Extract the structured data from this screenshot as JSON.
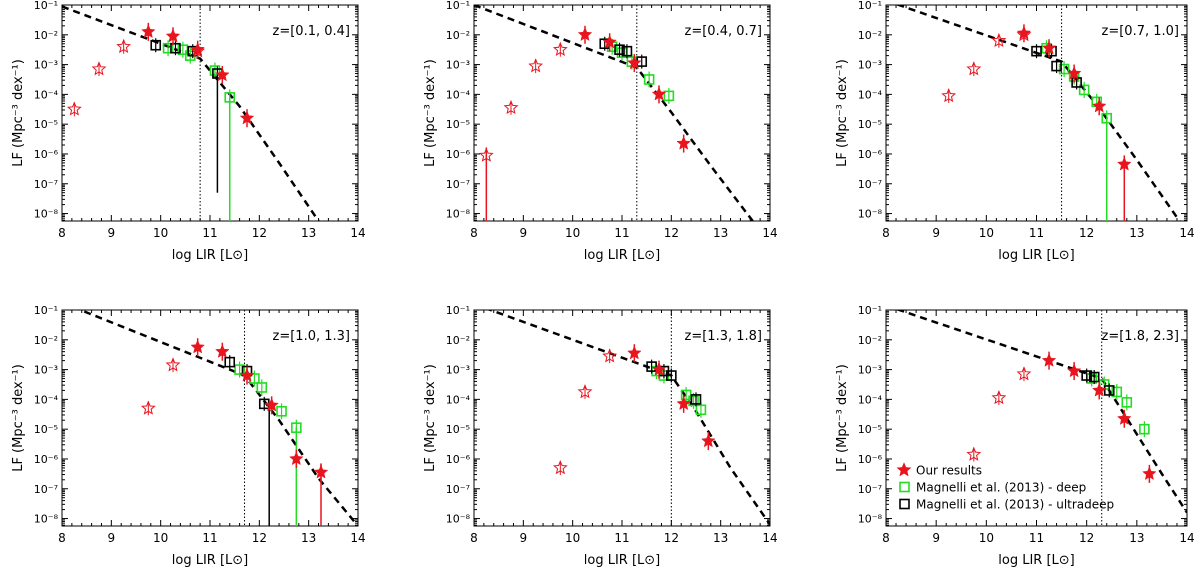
{
  "figure": {
    "xlabel": "log LIR [L⊙]",
    "ylabel": "LF (Mpc⁻³ dex⁻¹)",
    "xlim": [
      8,
      14
    ],
    "ylim_log10": [
      -8.25,
      -1
    ],
    "xticks": [
      "8",
      "9",
      "10",
      "11",
      "12",
      "13",
      "14"
    ],
    "yticks": [
      "10⁻¹",
      "10⁻²",
      "10⁻³",
      "10⁻⁴",
      "10⁻⁵",
      "10⁻⁶",
      "10⁻⁷",
      "10⁻⁸"
    ],
    "colors": {
      "ours": "#e8141e",
      "deep": "#22dd22",
      "ultradeep": "#000000",
      "fit": "#000000"
    },
    "legend": {
      "placement": "lower-left of last panel",
      "entries": [
        {
          "label": "Our results",
          "marker": "filled-star",
          "color": "#e8141e"
        },
        {
          "label": "Magnelli et al. (2013) - deep",
          "marker": "open-square",
          "color": "#22dd22"
        },
        {
          "label": "Magnelli et al. (2013) - ultradeep",
          "marker": "open-square",
          "color": "#000000"
        }
      ]
    }
  },
  "chart_data": [
    {
      "type": "scatter",
      "title": "z=[0.1, 0.4]",
      "y_scale": "log",
      "vline": 10.8,
      "fit": [
        [
          8,
          -1.05
        ],
        [
          10.8,
          -2.8
        ],
        [
          11.6,
          -4.4
        ],
        [
          12.4,
          -6.3
        ],
        [
          13.2,
          -8.25
        ]
      ],
      "series": [
        {
          "name": "Our results",
          "filled": [
            [
              9.75,
              -1.9
            ],
            [
              10.25,
              -2.05
            ],
            [
              10.75,
              -2.5
            ],
            [
              11.25,
              -3.35
            ],
            [
              11.75,
              -4.8
            ]
          ],
          "open": [
            [
              8.25,
              -4.5
            ],
            [
              8.75,
              -3.15
            ],
            [
              9.25,
              -2.4
            ],
            [
              10.75,
              -2.55
            ]
          ]
        },
        {
          "name": "Magnelli et al. (2013) - deep",
          "points": [
            [
              10.15,
              -2.45
            ],
            [
              10.45,
              -2.5
            ],
            [
              10.6,
              -2.7
            ],
            [
              11.1,
              -3.2
            ],
            [
              11.4,
              -4.1
            ]
          ],
          "err_to_bottom": [
            11.4
          ]
        },
        {
          "name": "Magnelli et al. (2013) - ultradeep",
          "points": [
            [
              9.9,
              -2.35
            ],
            [
              10.3,
              -2.45
            ],
            [
              10.65,
              -2.55
            ],
            [
              11.15,
              -3.3
            ]
          ],
          "err_low": [
            [
              11.15,
              -7.3
            ]
          ]
        }
      ]
    },
    {
      "type": "scatter",
      "title": "z=[0.4, 0.7]",
      "y_scale": "log",
      "vline": 11.3,
      "fit": [
        [
          8,
          -1.0
        ],
        [
          11.3,
          -3.1
        ],
        [
          12.0,
          -4.6
        ],
        [
          12.8,
          -6.4
        ],
        [
          13.65,
          -8.25
        ]
      ],
      "series": [
        {
          "name": "Our results",
          "filled": [
            [
              10.25,
              -2.0
            ],
            [
              10.75,
              -2.25
            ],
            [
              11.25,
              -2.95
            ],
            [
              11.75,
              -4.0
            ],
            [
              12.25,
              -5.65
            ]
          ],
          "open": [
            [
              8.25,
              -6.05
            ],
            [
              8.75,
              -4.45
            ],
            [
              9.25,
              -3.05
            ],
            [
              9.75,
              -2.5
            ]
          ],
          "err_to_bottom": [
            8.25
          ]
        },
        {
          "name": "Magnelli et al. (2013) - deep",
          "points": [
            [
              10.8,
              -2.4
            ],
            [
              11.0,
              -2.6
            ],
            [
              11.2,
              -2.9
            ],
            [
              11.55,
              -3.5
            ],
            [
              11.95,
              -4.05
            ]
          ]
        },
        {
          "name": "Magnelli et al. (2013) - ultradeep",
          "points": [
            [
              10.65,
              -2.3
            ],
            [
              10.95,
              -2.5
            ],
            [
              11.1,
              -2.55
            ],
            [
              11.4,
              -2.9
            ]
          ]
        }
      ]
    },
    {
      "type": "scatter",
      "title": "z=[0.7, 1.0]",
      "y_scale": "log",
      "vline": 11.5,
      "fit": [
        [
          8,
          -0.85
        ],
        [
          11.5,
          -2.9
        ],
        [
          12.2,
          -4.35
        ],
        [
          13.0,
          -6.2
        ],
        [
          13.85,
          -8.25
        ]
      ],
      "series": [
        {
          "name": "Our results",
          "filled": [
            [
              10.75,
              -1.95
            ],
            [
              11.25,
              -2.45
            ],
            [
              11.75,
              -3.3
            ],
            [
              12.25,
              -4.4
            ],
            [
              12.75,
              -6.35
            ]
          ],
          "open": [
            [
              9.25,
              -4.05
            ],
            [
              9.75,
              -3.15
            ],
            [
              10.25,
              -2.2
            ],
            [
              10.75,
              -2.0
            ]
          ],
          "err_to_bottom": [
            12.75
          ]
        },
        {
          "name": "Magnelli et al. (2013) - deep",
          "points": [
            [
              11.2,
              -2.45
            ],
            [
              11.55,
              -3.15
            ],
            [
              11.75,
              -3.4
            ],
            [
              11.95,
              -3.85
            ],
            [
              12.2,
              -4.25
            ],
            [
              12.4,
              -4.8
            ]
          ],
          "err_to_bottom": [
            12.4
          ]
        },
        {
          "name": "Magnelli et al. (2013) - ultradeep",
          "points": [
            [
              11.0,
              -2.55
            ],
            [
              11.3,
              -2.55
            ],
            [
              11.4,
              -3.05
            ],
            [
              11.8,
              -3.6
            ]
          ]
        }
      ]
    },
    {
      "type": "scatter",
      "title": "z=[1.0, 1.3]",
      "y_scale": "log",
      "vline": 11.7,
      "fit": [
        [
          8,
          -0.75
        ],
        [
          11.7,
          -3.2
        ],
        [
          12.4,
          -4.7
        ],
        [
          13.2,
          -6.65
        ],
        [
          14.0,
          -8.25
        ]
      ],
      "series": [
        {
          "name": "Our results",
          "filled": [
            [
              10.75,
              -2.25
            ],
            [
              11.25,
              -2.4
            ],
            [
              11.75,
              -3.2
            ],
            [
              12.25,
              -4.2
            ],
            [
              12.75,
              -6.0
            ],
            [
              13.25,
              -6.45
            ]
          ],
          "open": [
            [
              9.75,
              -4.3
            ],
            [
              10.25,
              -2.85
            ]
          ],
          "err_to_bottom": [
            13.25
          ]
        },
        {
          "name": "Magnelli et al. (2013) - deep",
          "points": [
            [
              11.6,
              -3.0
            ],
            [
              11.9,
              -3.3
            ],
            [
              12.05,
              -3.6
            ],
            [
              12.45,
              -4.4
            ],
            [
              12.75,
              -4.95
            ]
          ],
          "err_to_bottom": [
            12.75
          ]
        },
        {
          "name": "Magnelli et al. (2013) - ultradeep",
          "points": [
            [
              11.4,
              -2.75
            ],
            [
              11.75,
              -3.05
            ],
            [
              12.1,
              -4.15
            ]
          ],
          "err_to_bottom": [
            12.2
          ]
        }
      ]
    },
    {
      "type": "scatter",
      "title": "z=[1.3, 1.8]",
      "y_scale": "log",
      "vline": 12.0,
      "fit": [
        [
          8,
          -0.8
        ],
        [
          12.0,
          -3.2
        ],
        [
          12.5,
          -4.4
        ],
        [
          13.2,
          -6.3
        ],
        [
          14.0,
          -8.2
        ]
      ],
      "series": [
        {
          "name": "Our results",
          "filled": [
            [
              11.25,
              -2.45
            ],
            [
              11.75,
              -3.0
            ],
            [
              12.25,
              -4.15
            ],
            [
              12.75,
              -5.4
            ]
          ],
          "open": [
            [
              9.75,
              -6.3
            ],
            [
              10.25,
              -3.75
            ],
            [
              10.75,
              -2.55
            ]
          ]
        },
        {
          "name": "Magnelli et al. (2013) - deep",
          "points": [
            [
              11.7,
              -3.05
            ],
            [
              11.85,
              -3.2
            ],
            [
              12.3,
              -3.85
            ],
            [
              12.45,
              -4.05
            ],
            [
              12.6,
              -4.35
            ]
          ]
        },
        {
          "name": "Magnelli et al. (2013) - ultradeep",
          "points": [
            [
              11.6,
              -2.9
            ],
            [
              11.85,
              -3.05
            ],
            [
              12.0,
              -3.2
            ],
            [
              12.5,
              -4.0
            ]
          ]
        }
      ]
    },
    {
      "type": "scatter",
      "title": "z=[1.8, 2.3]",
      "y_scale": "log",
      "vline": 12.3,
      "fit": [
        [
          8,
          -0.85
        ],
        [
          12.3,
          -3.3
        ],
        [
          12.9,
          -4.9
        ],
        [
          13.5,
          -6.5
        ],
        [
          14.0,
          -7.8
        ]
      ],
      "series": [
        {
          "name": "Our results",
          "filled": [
            [
              11.25,
              -2.7
            ],
            [
              11.75,
              -3.05
            ],
            [
              12.25,
              -3.7
            ],
            [
              12.75,
              -4.65
            ],
            [
              13.25,
              -6.5
            ]
          ],
          "open": [
            [
              10.25,
              -3.95
            ],
            [
              10.75,
              -3.15
            ],
            [
              9.75,
              -5.85
            ]
          ]
        },
        {
          "name": "Magnelli et al. (2013) - deep",
          "points": [
            [
              12.1,
              -3.3
            ],
            [
              12.35,
              -3.5
            ],
            [
              12.6,
              -3.75
            ],
            [
              12.8,
              -4.1
            ],
            [
              13.15,
              -5.0
            ]
          ]
        },
        {
          "name": "Magnelli et al. (2013) - ultradeep",
          "points": [
            [
              12.0,
              -3.2
            ],
            [
              12.15,
              -3.25
            ],
            [
              12.45,
              -3.7
            ]
          ]
        }
      ]
    }
  ]
}
